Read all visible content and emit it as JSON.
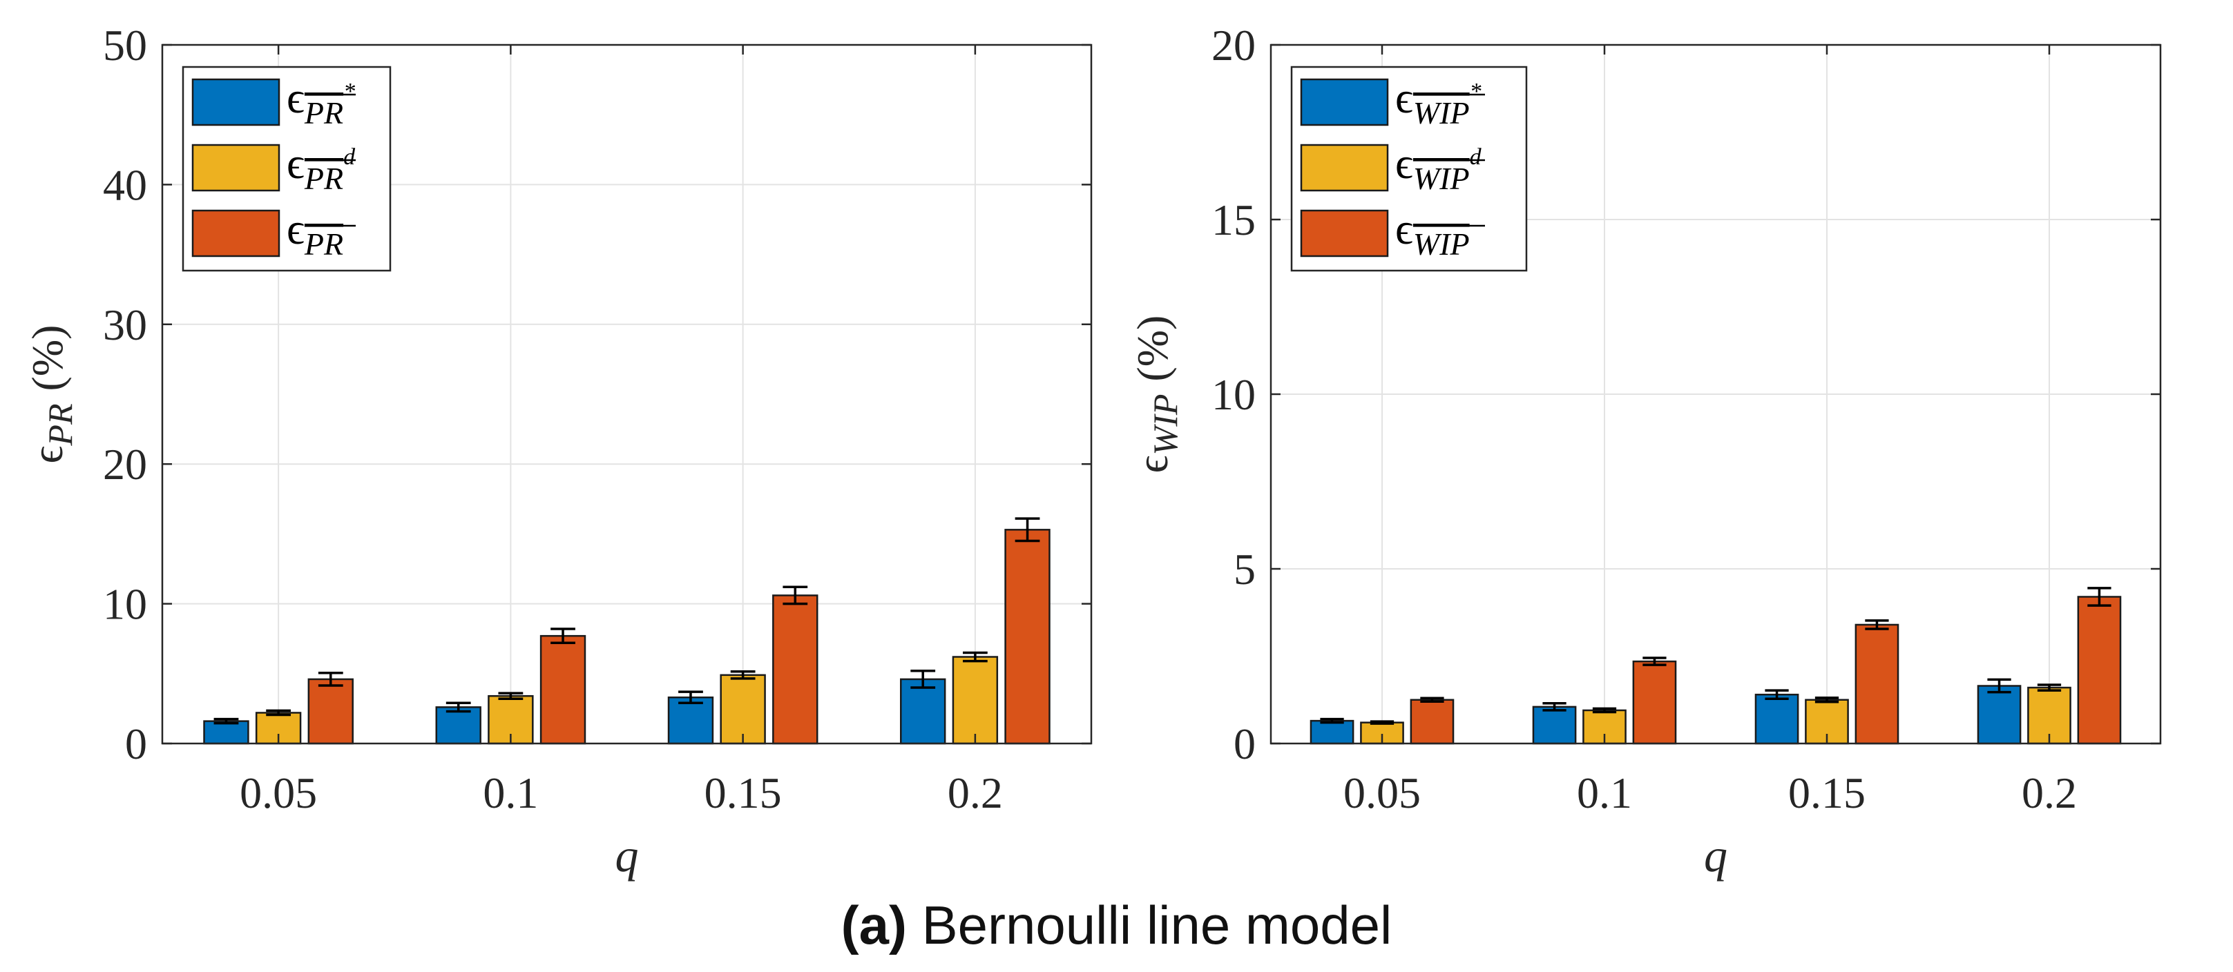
{
  "chart_data": [
    {
      "type": "bar",
      "id": "left",
      "categories": [
        "0.05",
        "0.1",
        "0.15",
        "0.2"
      ],
      "xlabel": "q",
      "ylabel_symbol": "ϵ",
      "ylabel_sub": "PR",
      "ylabel_unit": "(%)",
      "ylim": [
        0,
        50
      ],
      "yticks": [
        "0",
        "10",
        "20",
        "30",
        "40",
        "50"
      ],
      "grid": true,
      "legend_position": "top-left",
      "series": [
        {
          "name": "PR*",
          "legend_base": "PR",
          "legend_sup": "*",
          "color": "#0072BD",
          "values": [
            1.6,
            2.6,
            3.3,
            4.6
          ],
          "errors": [
            0.15,
            0.3,
            0.4,
            0.6
          ]
        },
        {
          "name": "PRd",
          "legend_base": "PR",
          "legend_sup": "d",
          "color": "#EDB120",
          "values": [
            2.2,
            3.4,
            4.9,
            6.2
          ],
          "errors": [
            0.15,
            0.2,
            0.25,
            0.3
          ]
        },
        {
          "name": "PR",
          "legend_base": "PR",
          "legend_sup": "",
          "color": "#D95319",
          "values": [
            4.6,
            7.7,
            10.6,
            15.3
          ],
          "errors": [
            0.45,
            0.5,
            0.6,
            0.8
          ]
        }
      ]
    },
    {
      "type": "bar",
      "id": "right",
      "categories": [
        "0.05",
        "0.1",
        "0.15",
        "0.2"
      ],
      "xlabel": "q",
      "ylabel_symbol": "ϵ",
      "ylabel_sub": "WIP",
      "ylabel_unit": "(%)",
      "ylim": [
        0,
        20
      ],
      "yticks": [
        "0",
        "5",
        "10",
        "15",
        "20"
      ],
      "grid": true,
      "legend_position": "top-left",
      "series": [
        {
          "name": "WIP*",
          "legend_base": "WIP",
          "legend_sup": "*",
          "color": "#0072BD",
          "values": [
            0.65,
            1.05,
            1.4,
            1.65
          ],
          "errors": [
            0.05,
            0.1,
            0.12,
            0.18
          ]
        },
        {
          "name": "WIPd",
          "legend_base": "WIP",
          "legend_sup": "d",
          "color": "#EDB120",
          "values": [
            0.6,
            0.95,
            1.25,
            1.6
          ],
          "errors": [
            0.03,
            0.05,
            0.06,
            0.08
          ]
        },
        {
          "name": "WIP",
          "legend_base": "WIP",
          "legend_sup": "",
          "color": "#D95319",
          "values": [
            1.25,
            2.35,
            3.4,
            4.2
          ],
          "errors": [
            0.05,
            0.1,
            0.12,
            0.25
          ]
        }
      ]
    }
  ],
  "caption": {
    "label": "(a)",
    "text": "Bernoulli line model"
  }
}
